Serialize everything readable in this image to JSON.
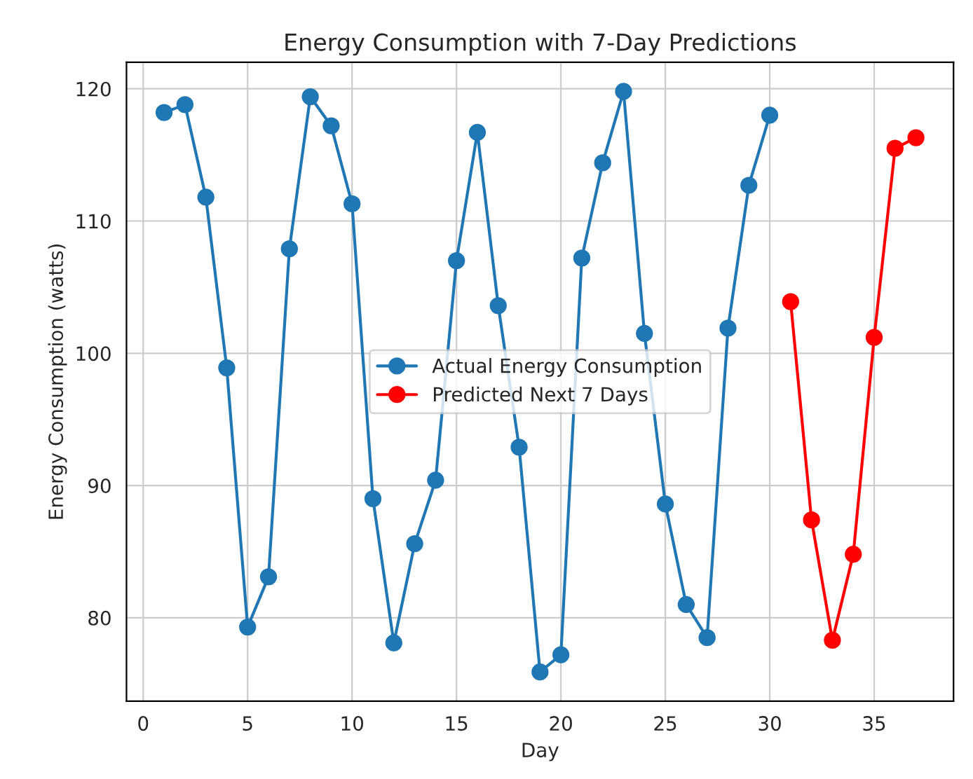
{
  "chart_data": {
    "type": "line",
    "title": "Energy Consumption with 7-Day Predictions",
    "xlabel": "Day",
    "ylabel": "Energy Consumption (watts)",
    "series": [
      {
        "name": "Actual Energy Consumption",
        "color": "#1f77b4",
        "x": [
          1,
          2,
          3,
          4,
          5,
          6,
          7,
          8,
          9,
          10,
          11,
          12,
          13,
          14,
          15,
          16,
          17,
          18,
          19,
          20,
          21,
          22,
          23,
          24,
          25,
          26,
          27,
          28,
          29,
          30
        ],
        "values": [
          118.2,
          118.8,
          111.8,
          98.9,
          79.3,
          83.1,
          107.9,
          119.4,
          117.2,
          111.3,
          89.0,
          78.1,
          85.6,
          90.4,
          107.0,
          116.7,
          103.6,
          92.9,
          75.9,
          77.2,
          107.2,
          114.4,
          119.8,
          101.5,
          88.6,
          81.0,
          78.5,
          101.9,
          112.7,
          118.0
        ]
      },
      {
        "name": "Predicted Next 7 Days",
        "color": "#ff0000",
        "x": [
          31,
          32,
          33,
          34,
          35,
          36,
          37
        ],
        "values": [
          103.9,
          87.4,
          78.3,
          84.8,
          101.2,
          115.5,
          116.3
        ]
      }
    ],
    "xlim": [
      -0.8,
      38.8
    ],
    "ylim": [
      73.7,
      122.0
    ],
    "xticks": [
      0,
      5,
      10,
      15,
      20,
      25,
      30,
      35
    ],
    "yticks": [
      80,
      90,
      100,
      110,
      120
    ],
    "grid": true,
    "legend": "center",
    "marker": "circle",
    "line_style": "solid"
  }
}
